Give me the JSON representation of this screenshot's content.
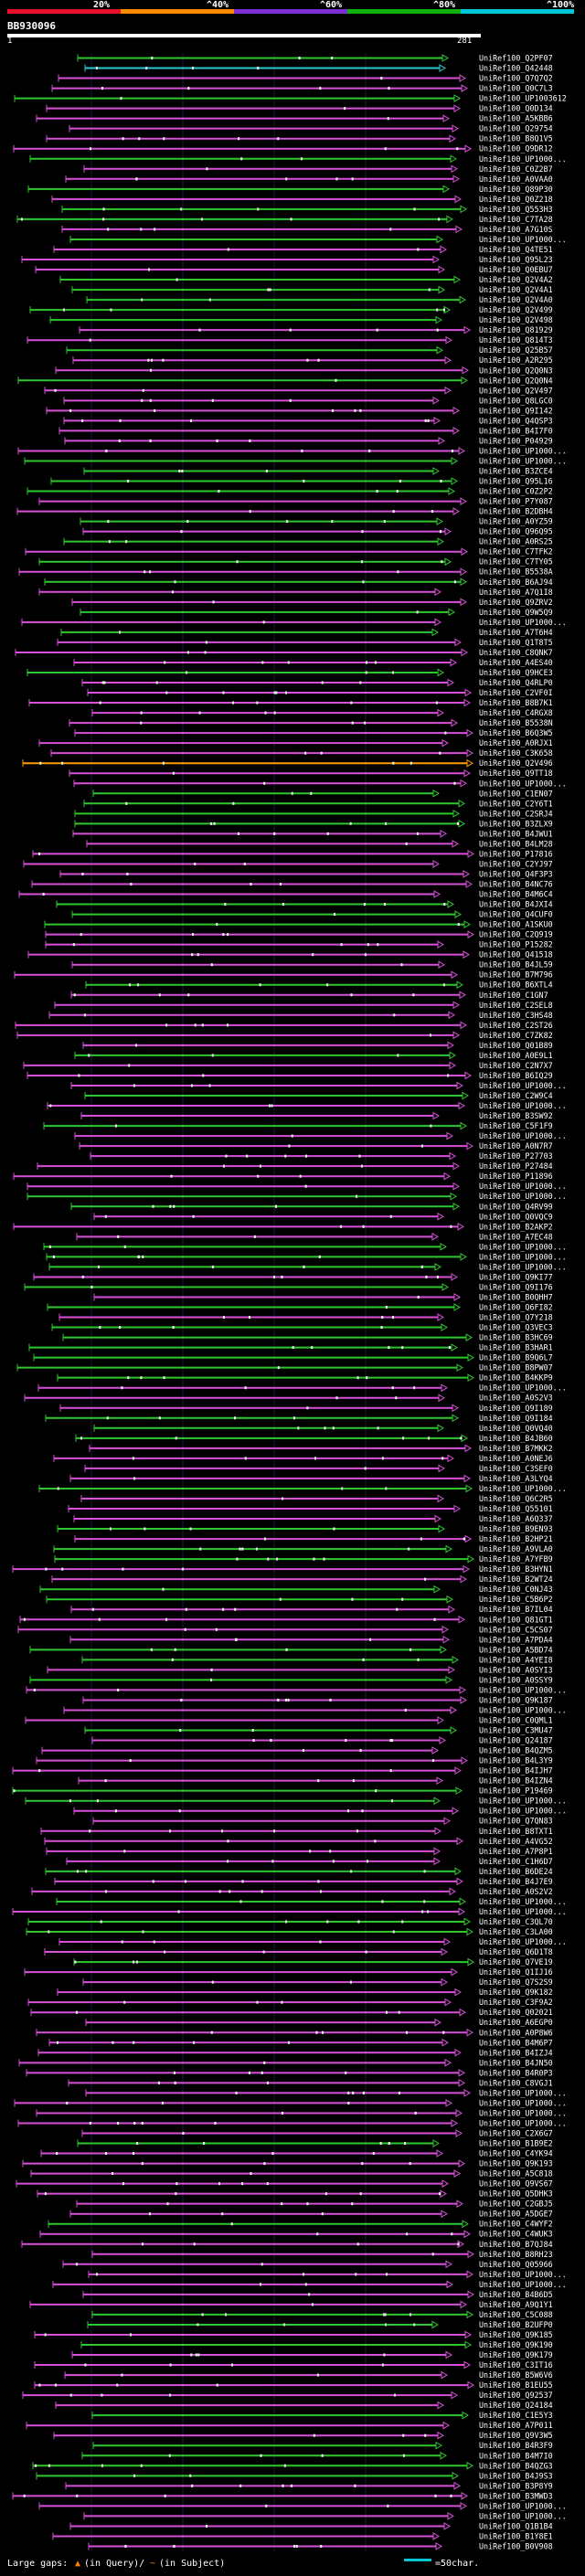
{
  "legend": {
    "labels": [
      "20%",
      "^40%",
      "^60%",
      "^80%",
      "^100%"
    ],
    "colors": [
      "#e8102a",
      "#ff8c00",
      "#7d2fd6",
      "#0fb00f",
      "#00c8d8"
    ]
  },
  "query": {
    "id": "BB930096",
    "start": "1",
    "end": "281"
  },
  "hit_colors": {
    "green": "#2ec82e",
    "magenta": "#d84fd8",
    "orange": "#ff9d00",
    "cyan": "#2ac8d0"
  },
  "hits": [
    "UniRef100_Q2PF07",
    "UniRef100_Q42448",
    "UniRef100_Q7Q7Q2",
    "UniRef100_Q0C7L3",
    "UniRef100_UP1003612",
    "UniRef100_Q0D134",
    "UniRef100_A5KBB6",
    "UniRef100_Q29754",
    "UniRef100_B8Q1V5",
    "UniRef100_Q9DR12",
    "UniRef100_UP1000...",
    "UniRef100_C0Z2B7",
    "UniRef100_A0VAA0",
    "UniRef100_Q89P30",
    "UniRef100_Q0Z218",
    "UniRef100_Q553H3",
    "UniRef100_C7TA28",
    "UniRef100_A7G10S",
    "UniRef100_UP1000...",
    "UniRef100_Q4TE51",
    "UniRef100_Q95L23",
    "UniRef100_Q0EBU7",
    "UniRef100_Q2V4A2",
    "UniRef100_Q2V4A1",
    "UniRef100_Q2V4A0",
    "UniRef100_Q2V499",
    "UniRef100_Q2V498",
    "UniRef100_Q81929",
    "UniRef100_Q814T3",
    "UniRef100_Q25B57",
    "UniRef100_A2R295",
    "UniRef100_Q2Q0N3",
    "UniRef100_Q2Q0N4",
    "UniRef100_Q2V497",
    "UniRef100_Q8LGC0",
    "UniRef100_Q9I142",
    "UniRef100_Q4QSP3",
    "UniRef100_B4I7F0",
    "UniRef100_P04929",
    "UniRef100_UP1000...",
    "UniRef100_UP1000...",
    "UniRef100_B3ZCE4",
    "UniRef100_Q95L16",
    "UniRef100_C0Z2P2",
    "UniRef100_P7Y087",
    "UniRef100_B2DBH4",
    "UniRef100_A0YZ59",
    "UniRef100_Q96Q95",
    "UniRef100_A0RS25",
    "UniRef100_C7TFK2",
    "UniRef100_C7TY05",
    "UniRef100_B5538A",
    "UniRef100_B6AJ94",
    "UniRef100_A7Q1I8",
    "UniRef100_Q9ZRV2",
    "UniRef100_Q9W5Q9",
    "UniRef100_UP1000...",
    "UniRef100_A7T6H4",
    "UniRef100_Q1T8T5",
    "UniRef100_C8QNK7",
    "UniRef100_A4ES40",
    "UniRef100_Q9HCE3",
    "UniRef100_Q4RLP0",
    "UniRef100_C2VF0I",
    "UniRef100_B8B7K1",
    "UniRef100_C4RGX8",
    "UniRef100_B5538N",
    "UniRef100_B6Q3W5",
    "UniRef100_A0RJX1",
    "UniRef100_C3K658",
    "UniRef100_Q2V496",
    "UniRef100_Q9TT18",
    "UniRef100_UP1000...",
    "UniRef100_C1EN07",
    "UniRef100_C2Y6T1",
    "UniRef100_C2SRJ4",
    "UniRef100_B3ZLX9",
    "UniRef100_B4JWU1",
    "UniRef100_B4LM28",
    "UniRef100_P17816",
    "UniRef100_C2YJ97",
    "UniRef100_Q4F3P3",
    "UniRef100_B4NC76",
    "UniRef100_B4M6C4",
    "UniRef100_B4JXI4",
    "UniRef100_Q4CUF0",
    "UniRef100_A1SKU0",
    "UniRef100_C2Q919",
    "UniRef100_P15282",
    "UniRef100_Q41518",
    "UniRef100_B4JL59",
    "UniRef100_B7M796",
    "UniRef100_B6XTL4",
    "UniRef100_C1GN7",
    "UniRef100_C2SEL8",
    "UniRef100_C3HS48",
    "UniRef100_C2ST26",
    "UniRef100_C7ZK82",
    "UniRef100_Q01B89",
    "UniRef100_A0E9L1",
    "UniRef100_C2N7X7",
    "UniRef100_B6IQ29",
    "UniRef100_UP1000...",
    "UniRef100_C2W9C4",
    "UniRef100_UP1000...",
    "UniRef100_B3SW92",
    "UniRef100_C5F1F9",
    "UniRef100_UP1000...",
    "UniRef100_A0N7R7",
    "UniRef100_P27703",
    "UniRef100_P27484",
    "UniRef100_P11896",
    "UniRef100_UP1000...",
    "UniRef100_UP1000...",
    "UniRef100_Q4RV99",
    "UniRef100_Q0VQC9",
    "UniRef100_B2AKP2",
    "UniRef100_A7EC48",
    "UniRef100_UP1000...",
    "UniRef100_UP1000...",
    "UniRef100_UP1000...",
    "UniRef100_Q9KI77",
    "UniRef100_Q9I176",
    "UniRef100_B0QHH7",
    "UniRef100_Q6FI82",
    "UniRef100_Q7Y218",
    "UniRef100_Q3VEC3",
    "UniRef100_B3HC69",
    "UniRef100_B3HAR1",
    "UniRef100_B9Q6L7",
    "UniRef100_B8PW07",
    "UniRef100_B4KKP9",
    "UniRef100_UP1000...",
    "UniRef100_A0S2V3",
    "UniRef100_Q9I189",
    "UniRef100_Q9I184",
    "UniRef100_Q0VQ40",
    "UniRef100_B4JB60",
    "UniRef100_B7MKK2",
    "UniRef100_A0NEJ6",
    "UniRef100_C3SEF0",
    "UniRef100_A3LYQ4",
    "UniRef100_UP1000...",
    "UniRef100_Q6C2R5",
    "UniRef100_Q55101",
    "UniRef100_A6Q337",
    "UniRef100_B9EN93",
    "UniRef100_B2HP21",
    "UniRef100_A9VLA0",
    "UniRef100_A7YFB9",
    "UniRef100_B3HYN1",
    "UniRef100_B2WT24",
    "UniRef100_C0NJ43",
    "UniRef100_C5B6P2",
    "UniRef100_B7IL04",
    "UniRef100_Q81GT1",
    "UniRef100_C5CS07",
    "UniRef100_A7PDA4",
    "UniRef100_A5BD74",
    "UniRef100_A4YEI8",
    "UniRef100_A0SYI3",
    "UniRef100_A0SSY9",
    "UniRef100_UP1000...",
    "UniRef100_Q9K187",
    "UniRef100_UP1000...",
    "UniRef100_C0QML1",
    "UniRef100_C3MU47",
    "UniRef100_Q24187",
    "UniRef100_B4QZM5",
    "UniRef100_B4L3Y9",
    "UniRef100_B4IJH7",
    "UniRef100_B4IZN4",
    "UniRef100_P19469",
    "UniRef100_UP1000...",
    "UniRef100_UP1000...",
    "UniRef100_Q7QN83",
    "UniRef100_B8TXT1",
    "UniRef100_A4VG52",
    "UniRef100_A7P8P1",
    "UniRef100_C1H6D7",
    "UniRef100_B6DE24",
    "UniRef100_B4J7E9",
    "UniRef100_A0S2V2",
    "UniRef100_UP1000...",
    "UniRef100_UP1000...",
    "UniRef100_C3QL70",
    "UniRef100_C3LA00",
    "UniRef100_UP1000...",
    "UniRef100_Q6D1T8",
    "UniRef100_Q7VE19",
    "UniRef100_Q1IJ16",
    "UniRef100_Q7S2S9",
    "UniRef100_Q9K182",
    "UniRef100_C3F9A2",
    "UniRef100_Q02021",
    "UniRef100_A6EGP0",
    "UniRef100_A0P8W6",
    "UniRef100_B4M6P7",
    "UniRef100_B4IZJ4",
    "UniRef100_B4JN50",
    "UniRef100_B4R0P3",
    "UniRef100_C8VGJ1",
    "UniRef100_UP1000...",
    "UniRef100_UP1000...",
    "UniRef100_UP1000...",
    "UniRef100_UP1000...",
    "UniRef100_C2X6G7",
    "UniRef100_B1B9E2",
    "UniRef100_C4YK94",
    "UniRef100_Q9K193",
    "UniRef100_A5C818",
    "UniRef100_Q9VS67",
    "UniRef100_Q5DHK3",
    "UniRef100_C2GBJ5",
    "UniRef100_A5DGE7",
    "UniRef100_C4WYF2",
    "UniRef100_C4WUK3",
    "UniRef100_B7QJ84",
    "UniRef100_B8RH23",
    "UniRef100_Q05966",
    "UniRef100_UP1000...",
    "UniRef100_UP1000...",
    "UniRef100_B4B6D5",
    "UniRef100_A9Q1Y1",
    "UniRef100_C5C088",
    "UniRef100_B2UFP0",
    "UniRef100_Q9K185",
    "UniRef100_Q9K190",
    "UniRef100_Q9K179",
    "UniRef100_C3IT16",
    "UniRef100_B5W6V6",
    "UniRef100_B1EU55",
    "UniRef100_Q92537",
    "UniRef100_Q24184",
    "UniRef100_C1E5Y3",
    "UniRef100_A7P011",
    "UniRef100_Q9V3W5",
    "UniRef100_B4R3F9",
    "UniRef100_B4M7I0",
    "UniRef100_B4QZG3",
    "UniRef100_B4J9S3",
    "UniRef100_B3P8Y9",
    "UniRef100_B3MWD3",
    "UniRef100_UP1000...",
    "UniRef100_UP1000...",
    "UniRef100_Q1B1B4",
    "UniRef100_B1Y8E1",
    "UniRef100_B0V908"
  ],
  "footer": {
    "label": "Large gaps:",
    "gap_marker": "▲",
    "query_text": "(in Query)/",
    "subject_marker": "~",
    "subject_text": "(in Subject)",
    "scale_text": "=50char."
  }
}
